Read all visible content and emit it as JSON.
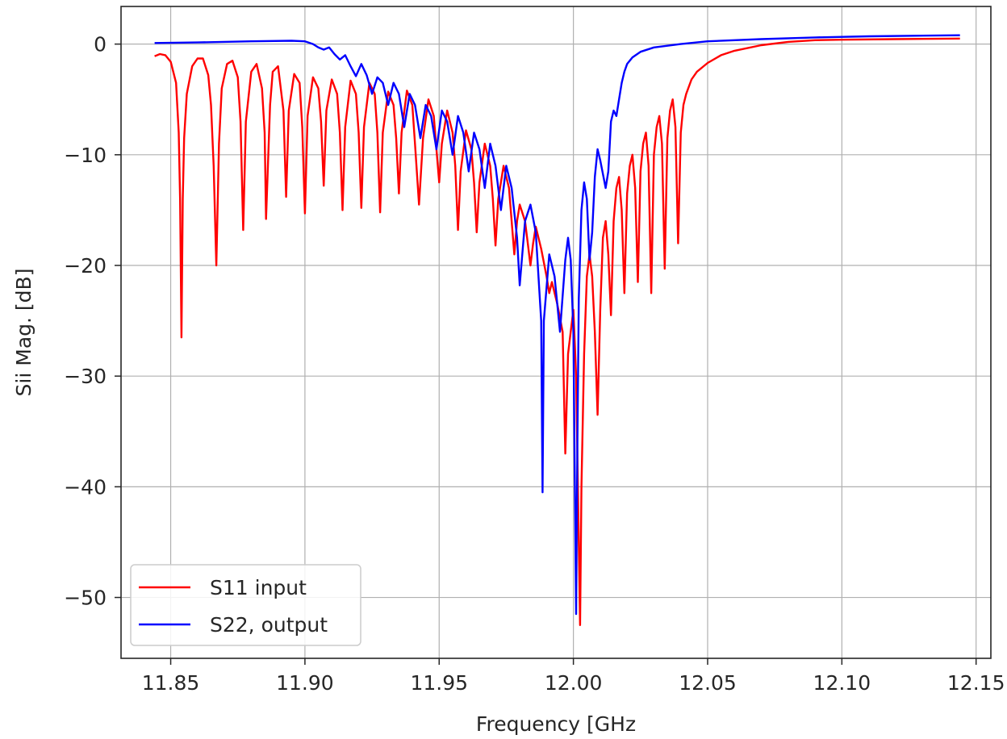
{
  "chart_data": {
    "type": "line",
    "title": "",
    "xlabel": "Frequency [GHz",
    "ylabel": "Sii Mag. [dB]",
    "xlim": [
      11.8315,
      12.1555
    ],
    "ylim": [
      -55.5,
      3.4
    ],
    "xticks": [
      11.85,
      11.9,
      11.95,
      12.0,
      12.05,
      12.1,
      12.15
    ],
    "xtick_labels": [
      "11.85",
      "11.90",
      "11.95",
      "12.00",
      "12.05",
      "12.10",
      "12.15"
    ],
    "yticks": [
      0,
      -10,
      -20,
      -30,
      -40,
      -50
    ],
    "ytick_labels": [
      "0",
      "−10",
      "−20",
      "−30",
      "−40",
      "−50"
    ],
    "grid": true,
    "legend_position": "lower-left",
    "series": [
      {
        "name": "S11 input",
        "color": "#ff0000",
        "points": [
          [
            11.844,
            -1.1
          ],
          [
            11.846,
            -0.9
          ],
          [
            11.848,
            -1.0
          ],
          [
            11.85,
            -1.6
          ],
          [
            11.852,
            -3.5
          ],
          [
            11.853,
            -8.0
          ],
          [
            11.8535,
            -14.0
          ],
          [
            11.854,
            -26.5
          ],
          [
            11.8545,
            -14.0
          ],
          [
            11.855,
            -8.5
          ],
          [
            11.856,
            -4.5
          ],
          [
            11.858,
            -2.0
          ],
          [
            11.86,
            -1.3
          ],
          [
            11.862,
            -1.3
          ],
          [
            11.864,
            -2.8
          ],
          [
            11.865,
            -5.5
          ],
          [
            11.866,
            -11.0
          ],
          [
            11.867,
            -20.0
          ],
          [
            11.868,
            -9.0
          ],
          [
            11.869,
            -4.0
          ],
          [
            11.871,
            -1.8
          ],
          [
            11.873,
            -1.5
          ],
          [
            11.875,
            -3.0
          ],
          [
            11.876,
            -7.0
          ],
          [
            11.877,
            -16.8
          ],
          [
            11.878,
            -7.0
          ],
          [
            11.88,
            -2.5
          ],
          [
            11.882,
            -1.8
          ],
          [
            11.884,
            -4.0
          ],
          [
            11.885,
            -8.0
          ],
          [
            11.8855,
            -15.8
          ],
          [
            11.887,
            -5.5
          ],
          [
            11.888,
            -2.5
          ],
          [
            11.89,
            -2.0
          ],
          [
            11.892,
            -6.0
          ],
          [
            11.893,
            -13.8
          ],
          [
            11.894,
            -6.0
          ],
          [
            11.896,
            -2.7
          ],
          [
            11.898,
            -3.5
          ],
          [
            11.899,
            -7.5
          ],
          [
            11.9,
            -15.3
          ],
          [
            11.901,
            -6.5
          ],
          [
            11.903,
            -3.0
          ],
          [
            11.905,
            -4.0
          ],
          [
            11.906,
            -7.0
          ],
          [
            11.907,
            -12.8
          ],
          [
            11.908,
            -6.0
          ],
          [
            11.91,
            -3.2
          ],
          [
            11.912,
            -4.5
          ],
          [
            11.913,
            -8.0
          ],
          [
            11.914,
            -15.0
          ],
          [
            11.915,
            -7.5
          ],
          [
            11.917,
            -3.3
          ],
          [
            11.919,
            -4.5
          ],
          [
            11.92,
            -8.0
          ],
          [
            11.921,
            -14.8
          ],
          [
            11.922,
            -7.5
          ],
          [
            11.924,
            -3.5
          ],
          [
            11.926,
            -4.5
          ],
          [
            11.927,
            -8.0
          ],
          [
            11.928,
            -15.2
          ],
          [
            11.929,
            -8.0
          ],
          [
            11.931,
            -4.3
          ],
          [
            11.933,
            -5.5
          ],
          [
            11.934,
            -8.5
          ],
          [
            11.935,
            -13.5
          ],
          [
            11.936,
            -8.0
          ],
          [
            11.938,
            -4.2
          ],
          [
            11.94,
            -5.5
          ],
          [
            11.941,
            -9.0
          ],
          [
            11.9425,
            -14.5
          ],
          [
            11.944,
            -8.5
          ],
          [
            11.946,
            -5.0
          ],
          [
            11.948,
            -6.5
          ],
          [
            11.949,
            -9.5
          ],
          [
            11.95,
            -12.5
          ],
          [
            11.951,
            -9.0
          ],
          [
            11.953,
            -6.0
          ],
          [
            11.955,
            -8.0
          ],
          [
            11.956,
            -11.0
          ],
          [
            11.957,
            -16.8
          ],
          [
            11.958,
            -11.5
          ],
          [
            11.96,
            -7.8
          ],
          [
            11.962,
            -9.5
          ],
          [
            11.963,
            -12.5
          ],
          [
            11.964,
            -17.0
          ],
          [
            11.965,
            -12.5
          ],
          [
            11.967,
            -9.0
          ],
          [
            11.969,
            -11.0
          ],
          [
            11.97,
            -14.0
          ],
          [
            11.971,
            -18.2
          ],
          [
            11.972,
            -14.0
          ],
          [
            11.974,
            -11.0
          ],
          [
            11.976,
            -13.0
          ],
          [
            11.977,
            -16.0
          ],
          [
            11.978,
            -19.0
          ],
          [
            11.979,
            -16.0
          ],
          [
            11.98,
            -14.5
          ],
          [
            11.982,
            -16.0
          ],
          [
            11.983,
            -18.0
          ],
          [
            11.984,
            -20.0
          ],
          [
            11.985,
            -18.0
          ],
          [
            11.986,
            -16.5
          ],
          [
            11.988,
            -18.5
          ],
          [
            11.99,
            -21.0
          ],
          [
            11.991,
            -22.5
          ],
          [
            11.992,
            -21.5
          ],
          [
            11.994,
            -23.5
          ],
          [
            11.996,
            -26.0
          ],
          [
            11.997,
            -37.0
          ],
          [
            11.998,
            -28.0
          ],
          [
            11.999,
            -26.0
          ],
          [
            12.0,
            -24.0
          ],
          [
            12.001,
            -30.0
          ],
          [
            12.002,
            -45.0
          ],
          [
            12.0025,
            -52.5
          ],
          [
            12.003,
            -40.0
          ],
          [
            12.004,
            -28.0
          ],
          [
            12.005,
            -21.0
          ],
          [
            12.006,
            -19.0
          ],
          [
            12.007,
            -21.0
          ],
          [
            12.008,
            -26.0
          ],
          [
            12.009,
            -33.5
          ],
          [
            12.01,
            -24.0
          ],
          [
            12.011,
            -17.5
          ],
          [
            12.012,
            -16.0
          ],
          [
            12.013,
            -19.0
          ],
          [
            12.014,
            -24.5
          ],
          [
            12.015,
            -16.0
          ],
          [
            12.016,
            -13.0
          ],
          [
            12.017,
            -12.0
          ],
          [
            12.018,
            -15.0
          ],
          [
            12.019,
            -22.5
          ],
          [
            12.02,
            -13.5
          ],
          [
            12.021,
            -11.0
          ],
          [
            12.022,
            -10.0
          ],
          [
            12.023,
            -13.0
          ],
          [
            12.024,
            -21.5
          ],
          [
            12.025,
            -11.5
          ],
          [
            12.026,
            -9.0
          ],
          [
            12.027,
            -8.0
          ],
          [
            12.028,
            -11.0
          ],
          [
            12.029,
            -22.5
          ],
          [
            12.03,
            -10.0
          ],
          [
            12.031,
            -7.5
          ],
          [
            12.032,
            -6.5
          ],
          [
            12.033,
            -9.0
          ],
          [
            12.034,
            -20.3
          ],
          [
            12.035,
            -8.5
          ],
          [
            12.036,
            -6.0
          ],
          [
            12.037,
            -5.0
          ],
          [
            12.038,
            -7.5
          ],
          [
            12.039,
            -18.0
          ],
          [
            12.04,
            -8.0
          ],
          [
            12.041,
            -5.5
          ],
          [
            12.042,
            -4.5
          ],
          [
            12.044,
            -3.2
          ],
          [
            12.046,
            -2.5
          ],
          [
            12.05,
            -1.7
          ],
          [
            12.055,
            -1.0
          ],
          [
            12.06,
            -0.6
          ],
          [
            12.07,
            -0.1
          ],
          [
            12.08,
            0.2
          ],
          [
            12.09,
            0.35
          ],
          [
            12.1,
            0.4
          ],
          [
            12.12,
            0.45
          ],
          [
            12.144,
            0.5
          ]
        ]
      },
      {
        "name": "S22, output",
        "color": "#0000ff",
        "points": [
          [
            11.844,
            0.1
          ],
          [
            11.86,
            0.15
          ],
          [
            11.88,
            0.25
          ],
          [
            11.895,
            0.3
          ],
          [
            11.9,
            0.25
          ],
          [
            11.903,
            0.0
          ],
          [
            11.905,
            -0.3
          ],
          [
            11.907,
            -0.5
          ],
          [
            11.909,
            -0.3
          ],
          [
            11.911,
            -0.9
          ],
          [
            11.913,
            -1.4
          ],
          [
            11.915,
            -1.0
          ],
          [
            11.917,
            -2.0
          ],
          [
            11.919,
            -2.9
          ],
          [
            11.921,
            -1.8
          ],
          [
            11.923,
            -2.8
          ],
          [
            11.925,
            -4.5
          ],
          [
            11.927,
            -3.0
          ],
          [
            11.929,
            -3.5
          ],
          [
            11.931,
            -5.5
          ],
          [
            11.933,
            -3.5
          ],
          [
            11.935,
            -4.5
          ],
          [
            11.937,
            -7.5
          ],
          [
            11.939,
            -4.5
          ],
          [
            11.941,
            -5.5
          ],
          [
            11.943,
            -8.5
          ],
          [
            11.945,
            -5.5
          ],
          [
            11.947,
            -6.5
          ],
          [
            11.949,
            -9.5
          ],
          [
            11.951,
            -6.0
          ],
          [
            11.953,
            -7.0
          ],
          [
            11.955,
            -10.0
          ],
          [
            11.957,
            -6.5
          ],
          [
            11.959,
            -8.0
          ],
          [
            11.961,
            -11.5
          ],
          [
            11.963,
            -8.0
          ],
          [
            11.965,
            -9.5
          ],
          [
            11.967,
            -13.0
          ],
          [
            11.969,
            -9.0
          ],
          [
            11.971,
            -11.0
          ],
          [
            11.973,
            -15.0
          ],
          [
            11.975,
            -11.0
          ],
          [
            11.977,
            -13.0
          ],
          [
            11.979,
            -17.5
          ],
          [
            11.98,
            -21.8
          ],
          [
            11.982,
            -16.0
          ],
          [
            11.984,
            -14.5
          ],
          [
            11.986,
            -17.0
          ],
          [
            11.988,
            -25.0
          ],
          [
            11.9885,
            -40.5
          ],
          [
            11.989,
            -25.0
          ],
          [
            11.991,
            -19.0
          ],
          [
            11.993,
            -21.0
          ],
          [
            11.995,
            -26.0
          ],
          [
            11.997,
            -19.5
          ],
          [
            11.998,
            -17.5
          ],
          [
            11.999,
            -19.5
          ],
          [
            12.0,
            -26.0
          ],
          [
            12.001,
            -51.5
          ],
          [
            12.0015,
            -36.0
          ],
          [
            12.002,
            -23.0
          ],
          [
            12.003,
            -15.0
          ],
          [
            12.004,
            -12.5
          ],
          [
            12.005,
            -14.0
          ],
          [
            12.006,
            -19.5
          ],
          [
            12.007,
            -17.0
          ],
          [
            12.008,
            -12.0
          ],
          [
            12.009,
            -9.5
          ],
          [
            12.01,
            -10.5
          ],
          [
            12.012,
            -13.0
          ],
          [
            12.013,
            -11.5
          ],
          [
            12.014,
            -7.0
          ],
          [
            12.015,
            -6.0
          ],
          [
            12.016,
            -6.5
          ],
          [
            12.017,
            -5.0
          ],
          [
            12.018,
            -3.5
          ],
          [
            12.019,
            -2.5
          ],
          [
            12.02,
            -1.8
          ],
          [
            12.022,
            -1.2
          ],
          [
            12.025,
            -0.7
          ],
          [
            12.03,
            -0.3
          ],
          [
            12.04,
            0.0
          ],
          [
            12.05,
            0.25
          ],
          [
            12.07,
            0.45
          ],
          [
            12.09,
            0.6
          ],
          [
            12.11,
            0.7
          ],
          [
            12.144,
            0.8
          ]
        ]
      }
    ]
  }
}
